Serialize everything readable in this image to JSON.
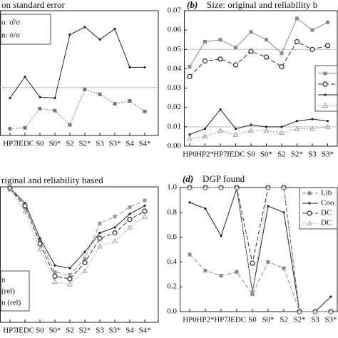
{
  "chart_data": [
    {
      "type": "line",
      "title": "on standard error",
      "categories": [
        "HP7",
        "JEDC",
        "S0",
        "S0*",
        "S2",
        "S2*",
        "S3",
        "S3*",
        "S4",
        "S4*"
      ],
      "ylim": [
        0.5,
        1.8
      ],
      "hlines": [
        1
      ],
      "series": [
        {
          "name": "o: σ̂/σ",
          "color": "#222222",
          "linestyle": "solid",
          "marker": "dot",
          "values": [
            0.89,
            1.11,
            0.9,
            0.89,
            1.55,
            1.63,
            1.5,
            1.61,
            1.21,
            1.21
          ]
        },
        {
          "name": "n: σ/σ",
          "color": "#777777",
          "linestyle": "dotted",
          "marker": "square",
          "values": [
            0.57,
            0.58,
            0.78,
            0.76,
            0.61,
            0.98,
            0.93,
            0.83,
            0.86,
            0.75
          ]
        }
      ]
    },
    {
      "type": "line",
      "label": "(b)",
      "title": "Size: original and reliability b",
      "categories": [
        "HP0",
        "HP2*",
        "HP7",
        "JEDC",
        "S0",
        "S0*",
        "S2",
        "S2*",
        "S3",
        "S3*"
      ],
      "ylim": [
        0,
        0.07
      ],
      "yticks": [
        {
          "value": 0,
          "label": "0.00"
        },
        {
          "value": 0.01,
          "label": "0.01"
        },
        {
          "value": 0.02,
          "label": "0.02"
        },
        {
          "value": 0.03,
          "label": "0.03"
        },
        {
          "value": 0.04,
          "label": "0.04"
        },
        {
          "value": 0.05,
          "label": "0.05"
        },
        {
          "value": 0.06,
          "label": "0.06"
        },
        {
          "value": 0.07,
          "label": "0.07"
        }
      ],
      "hlines": [
        0.05,
        0.01
      ],
      "series": [
        {
          "color": "#888888",
          "linestyle": "solid",
          "marker": "square",
          "values": [
            0.041,
            0.054,
            0.055,
            0.051,
            0.059,
            0.055,
            0.048,
            0.066,
            0.06,
            0.064
          ]
        },
        {
          "color": "#333333",
          "linestyle": "dashed",
          "marker": "circle",
          "values": [
            0.036,
            0.044,
            0.045,
            0.042,
            0.049,
            0.046,
            0.041,
            0.054,
            0.05,
            0.052
          ]
        },
        {
          "color": "#222222",
          "linestyle": "solid",
          "marker": "dot",
          "values": [
            0.006,
            0.009,
            0.019,
            0.009,
            0.011,
            0.01,
            0.01,
            0.013,
            0.014,
            0.013
          ]
        },
        {
          "color": "#999999",
          "linestyle": "dotted",
          "marker": "triangle",
          "values": [
            0.004,
            0.005,
            0.008,
            0.006,
            0.008,
            0.008,
            0.007,
            0.009,
            0.009,
            0.01
          ]
        }
      ]
    },
    {
      "type": "line",
      "title": "riginal and reliability based",
      "categories": [
        "HP7",
        "JEDC",
        "S0",
        "S0*",
        "S2",
        "S2*",
        "S3",
        "S3*",
        "S4",
        "S4*"
      ],
      "ylim": [
        0,
        1
      ],
      "series": [
        {
          "color": "#999999",
          "linestyle": "dashed",
          "marker": "square",
          "values": [
            0.98,
            0.85,
            0.6,
            0.37,
            0.35,
            0.47,
            0.73,
            0.78,
            0.85,
            0.9
          ]
        },
        {
          "name": "n",
          "color": "#222222",
          "linestyle": "solid",
          "marker": "dot",
          "values": [
            0.99,
            0.88,
            0.62,
            0.42,
            0.4,
            0.52,
            0.66,
            0.7,
            0.8,
            0.86
          ]
        },
        {
          "name": "(rel)",
          "color": "#333333",
          "linestyle": "dashed",
          "marker": "circle",
          "values": [
            0.99,
            0.86,
            0.58,
            0.34,
            0.32,
            0.44,
            0.62,
            0.66,
            0.76,
            0.82
          ]
        },
        {
          "name": "n (rel)",
          "color": "#aaaaaa",
          "linestyle": "dotted",
          "marker": "triangle",
          "values": [
            0.98,
            0.82,
            0.54,
            0.3,
            0.28,
            0.38,
            0.56,
            0.6,
            0.7,
            0.78
          ]
        }
      ]
    },
    {
      "type": "line",
      "label": "(d)",
      "title": "DGP found",
      "categories": [
        "HP0",
        "HP2*",
        "HP7",
        "JEDC",
        "S0",
        "S0*",
        "S2",
        "S2*",
        "S3",
        "S3*"
      ],
      "ylim": [
        0,
        1
      ],
      "yticks": [
        {
          "value": 0,
          "label": "0.0"
        },
        {
          "value": 0.2,
          "label": "0.2"
        },
        {
          "value": 0.4,
          "label": "0.4"
        },
        {
          "value": 0.6,
          "label": "0.6"
        },
        {
          "value": 0.8,
          "label": "0.8"
        },
        {
          "value": 1,
          "label": "1.0"
        }
      ],
      "series": [
        {
          "name": "Lib",
          "color": "#888888",
          "linestyle": "dashed",
          "marker": "square",
          "values": [
            0.46,
            0.33,
            0.29,
            0.32,
            0.14,
            0.4,
            0.35,
            0,
            0,
            0
          ]
        },
        {
          "name": "Coo",
          "color": "#222222",
          "linestyle": "solid",
          "marker": "dot",
          "values": [
            0.88,
            0.83,
            0.61,
            0.99,
            0.16,
            0.85,
            0.8,
            0,
            0,
            0.12
          ]
        },
        {
          "name": "DC",
          "color": "#333333",
          "linestyle": "dashed",
          "marker": "circle",
          "values": [
            1,
            1,
            1,
            1,
            0.39,
            1,
            1,
            0,
            0,
            0
          ]
        },
        {
          "name": "DC",
          "color": "#aaaaaa",
          "linestyle": "dotted",
          "marker": "triangle",
          "values": [
            1,
            1,
            1,
            1,
            0.15,
            1,
            1,
            0,
            0,
            0
          ]
        }
      ]
    }
  ]
}
